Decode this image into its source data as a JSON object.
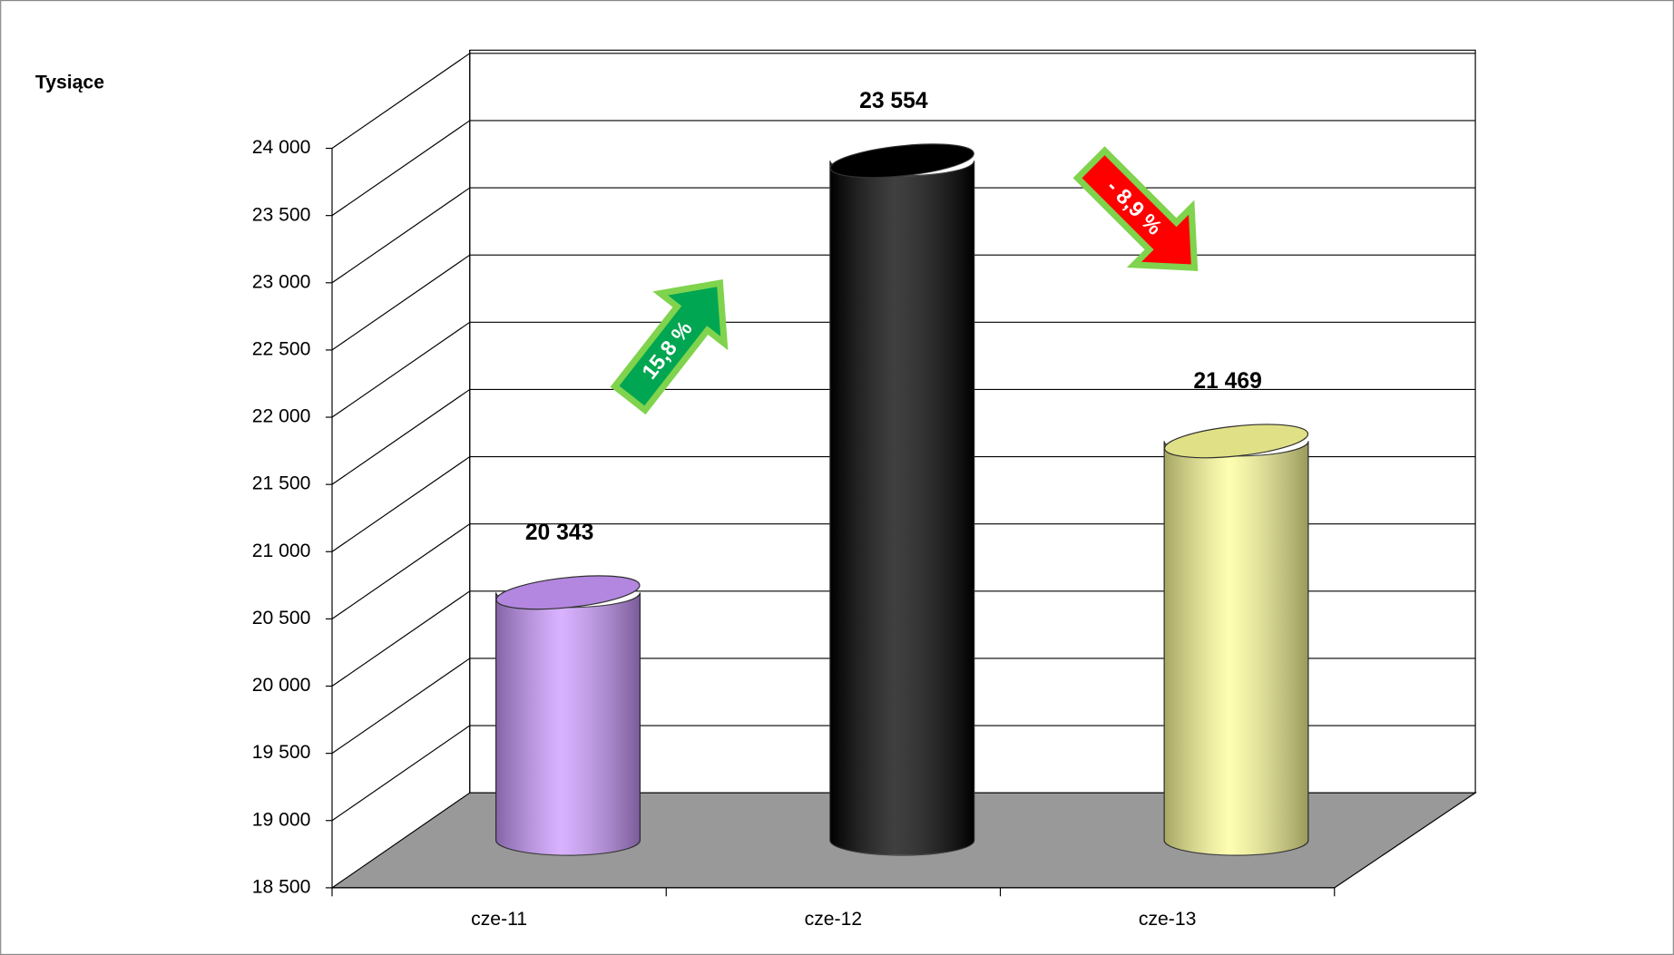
{
  "chart_data": {
    "type": "bar3d",
    "axis_title": "Tysiące",
    "categories": [
      "cze-11",
      "cze-12",
      "cze-13"
    ],
    "values": [
      20343,
      23554,
      21469
    ],
    "value_labels": [
      "20 343",
      "23 554",
      "21 469"
    ],
    "colors": [
      "#cc99ff",
      "#000000",
      "#ffff99"
    ],
    "ylim": [
      18500,
      24000
    ],
    "yticks": [
      {
        "value": 18500,
        "label": "18 500"
      },
      {
        "value": 19000,
        "label": "19 000"
      },
      {
        "value": 19500,
        "label": "19 500"
      },
      {
        "value": 20000,
        "label": "20 000"
      },
      {
        "value": 20500,
        "label": "20 500"
      },
      {
        "value": 21000,
        "label": "21 000"
      },
      {
        "value": 21500,
        "label": "21 500"
      },
      {
        "value": 22000,
        "label": "22 000"
      },
      {
        "value": 22500,
        "label": "22 500"
      },
      {
        "value": 23000,
        "label": "23 000"
      },
      {
        "value": 23500,
        "label": "23 500"
      },
      {
        "value": 24000,
        "label": "24 000"
      }
    ],
    "grid": true,
    "annotations": [
      {
        "text": "15,8 %",
        "color": "#00a651"
      },
      {
        "text": "- 8,9 %",
        "color": "#ff0000"
      }
    ]
  }
}
